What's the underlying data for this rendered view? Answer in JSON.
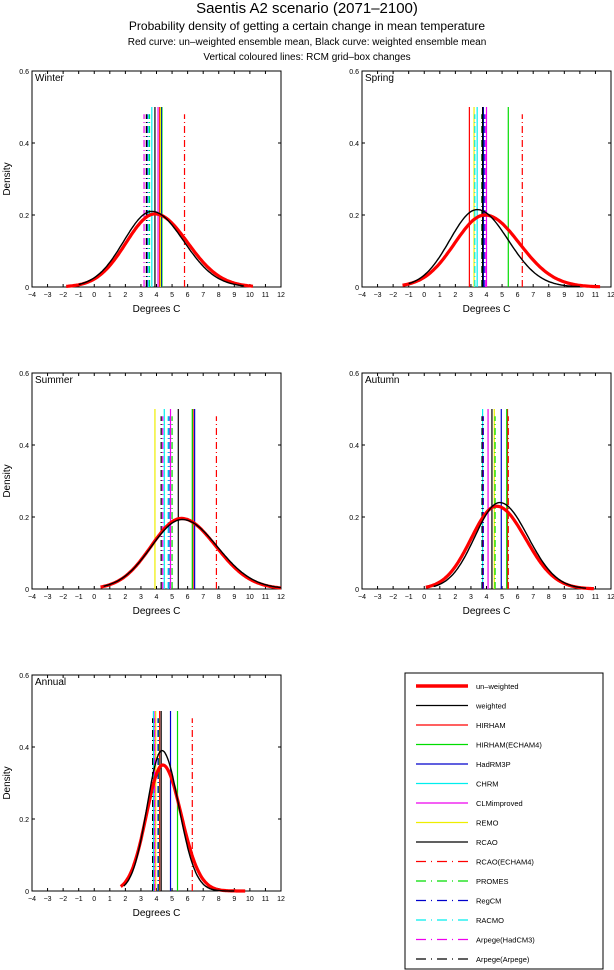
{
  "header": {
    "title": "Saentis A2 scenario (2071–2100)",
    "subtitle": "Probability density of getting a certain change in mean temperature",
    "line3": "Red curve: un–weighted ensemble mean, Black curve: weighted ensemble mean",
    "line4": "Vertical coloured lines: RCM grid–box changes"
  },
  "models": [
    {
      "key": "unweighted",
      "label": "un–weighted",
      "color": "#ff0000",
      "style": "thick"
    },
    {
      "key": "weighted",
      "label": "weighted",
      "color": "#000000",
      "style": "solid"
    },
    {
      "key": "HIRHAM",
      "label": "HIRHAM",
      "color": "#ff0000",
      "style": "solid"
    },
    {
      "key": "HIRHAM_ECHAM4",
      "label": "HIRHAM(ECHAM4)",
      "color": "#00dd00",
      "style": "solid"
    },
    {
      "key": "HadRM3P",
      "label": "HadRM3P",
      "color": "#0000cc",
      "style": "solid"
    },
    {
      "key": "CHRM",
      "label": "CHRM",
      "color": "#00eeee",
      "style": "solid"
    },
    {
      "key": "CLMimproved",
      "label": "CLMimproved",
      "color": "#ee00ee",
      "style": "solid"
    },
    {
      "key": "REMO",
      "label": "REMO",
      "color": "#eeee00",
      "style": "solid"
    },
    {
      "key": "RCAO",
      "label": "RCAO",
      "color": "#000000",
      "style": "solid"
    },
    {
      "key": "RCAO_ECHAM4",
      "label": "RCAO(ECHAM4)",
      "color": "#ff0000",
      "style": "dashdot"
    },
    {
      "key": "PROMES",
      "label": "PROMES",
      "color": "#00dd00",
      "style": "dashdot"
    },
    {
      "key": "RegCM",
      "label": "RegCM",
      "color": "#0000cc",
      "style": "dashdot"
    },
    {
      "key": "RACMO",
      "label": "RACMO",
      "color": "#00eeee",
      "style": "dashdot"
    },
    {
      "key": "Arpege_HadCM3",
      "label": "Arpege(HadCM3)",
      "color": "#ee00ee",
      "style": "dashdot"
    },
    {
      "key": "Arpege_Arpege",
      "label": "Arpege(Arpege)",
      "color": "#000000",
      "style": "dashdot"
    }
  ],
  "chart_data": [
    {
      "type": "line",
      "title": "Winter",
      "xlabel": "Degrees C",
      "ylabel": "Density",
      "xlim": [
        -4,
        12
      ],
      "ylim": [
        0,
        0.6
      ],
      "xticks": [
        -4,
        -3,
        -2,
        -1,
        0,
        1,
        2,
        3,
        4,
        5,
        6,
        7,
        8,
        9,
        10,
        11,
        12
      ],
      "yticks": [
        0,
        0.2,
        0.4,
        0.6
      ],
      "ytick_labels": [
        "0",
        "0.2",
        "0.4",
        "0.6"
      ],
      "unweighted": {
        "mean": 3.9,
        "sd": 1.95,
        "peak": 0.203,
        "range": [
          -1.8,
          10.2
        ]
      },
      "weighted": {
        "mean": 3.7,
        "sd": 1.9,
        "peak": 0.21,
        "range": [
          -1.0,
          9.6
        ]
      },
      "rcm_lines": {
        "HIRHAM": 4.2,
        "HIRHAM_ECHAM4": 4.35,
        "HadRM3P": 4.3,
        "CHRM": 3.7,
        "CLMimproved": 4.1,
        "REMO": 4.25,
        "RCAO": 3.9,
        "RCAO_ECHAM4": 5.8,
        "PROMES": 3.55,
        "RegCM": 3.4,
        "RACMO": 3.5,
        "Arpege_HadCM3": 3.2,
        "Arpege_Arpege": 3.35
      }
    },
    {
      "type": "line",
      "title": "Spring",
      "xlabel": "Degrees C",
      "ylabel": "",
      "xlim": [
        -4,
        12
      ],
      "ylim": [
        0,
        0.6
      ],
      "xticks": [
        -4,
        -3,
        -2,
        -1,
        0,
        1,
        2,
        3,
        4,
        5,
        6,
        7,
        8,
        9,
        10,
        11,
        12
      ],
      "yticks": [
        0,
        0.2,
        0.4,
        0.6
      ],
      "ytick_labels": [
        "0",
        "0.2",
        "0.4",
        "0.6"
      ],
      "unweighted": {
        "mean": 3.9,
        "sd": 2.05,
        "peak": 0.2,
        "range": [
          -1.4,
          11.3
        ]
      },
      "weighted": {
        "mean": 3.4,
        "sd": 1.85,
        "peak": 0.215,
        "range": [
          -1.0,
          10.0
        ]
      },
      "rcm_lines": {
        "HIRHAM": 2.9,
        "HIRHAM_ECHAM4": 5.4,
        "HadRM3P": 3.8,
        "CHRM": 3.4,
        "CLMimproved": 4.0,
        "REMO": 3.2,
        "RCAO": 3.75,
        "RCAO_ECHAM4": 6.3,
        "PROMES": 3.7,
        "RegCM": 3.85,
        "RACMO": 3.25,
        "Arpege_HadCM3": 3.95,
        "Arpege_Arpege": 3.72
      }
    },
    {
      "type": "line",
      "title": "Summer",
      "xlabel": "Degrees C",
      "ylabel": "Density",
      "xlim": [
        -4,
        12
      ],
      "ylim": [
        0,
        0.6
      ],
      "xticks": [
        -4,
        -3,
        -2,
        -1,
        0,
        1,
        2,
        3,
        4,
        5,
        6,
        7,
        8,
        9,
        10,
        11,
        12
      ],
      "yticks": [
        0,
        0.2,
        0.4,
        0.6
      ],
      "ytick_labels": [
        "0",
        "0.2",
        "0.4",
        "0.6"
      ],
      "unweighted": {
        "mean": 5.6,
        "sd": 2.05,
        "peak": 0.196,
        "range": [
          0.4,
          12.0
        ]
      },
      "weighted": {
        "mean": 5.65,
        "sd": 2.1,
        "peak": 0.193,
        "range": [
          0.6,
          12.0
        ]
      },
      "rcm_lines": {
        "HIRHAM": 6.35,
        "HIRHAM_ECHAM4": 6.3,
        "HadRM3P": 6.45,
        "CHRM": 4.5,
        "CLMimproved": 4.9,
        "REMO": 3.9,
        "RCAO": 5.4,
        "RCAO_ECHAM4": 7.85,
        "PROMES": 5.0,
        "RegCM": 4.8,
        "RACMO": 4.75,
        "Arpege_HadCM3": 4.4,
        "Arpege_Arpege": 4.3
      }
    },
    {
      "type": "line",
      "title": "Autumn",
      "xlabel": "Degrees C",
      "ylabel": "",
      "xlim": [
        -4,
        12
      ],
      "ylim": [
        0,
        0.6
      ],
      "xticks": [
        -4,
        -3,
        -2,
        -1,
        0,
        1,
        2,
        3,
        4,
        5,
        6,
        7,
        8,
        9,
        10,
        11,
        12
      ],
      "yticks": [
        0,
        0.2,
        0.4,
        0.6
      ],
      "ytick_labels": [
        "0",
        "0.2",
        "0.4",
        "0.6"
      ],
      "unweighted": {
        "mean": 4.65,
        "sd": 1.73,
        "peak": 0.23,
        "range": [
          0.1,
          10.9
        ]
      },
      "weighted": {
        "mean": 4.85,
        "sd": 1.68,
        "peak": 0.24,
        "range": [
          0.6,
          10.4
        ]
      },
      "rcm_lines": {
        "HIRHAM": 5.35,
        "HIRHAM_ECHAM4": 5.3,
        "HadRM3P": 4.95,
        "CHRM": 3.75,
        "CLMimproved": 4.1,
        "REMO": 4.5,
        "RCAO": 4.35,
        "RCAO_ECHAM4": 5.4,
        "PROMES": 4.55,
        "RegCM": 3.8,
        "RACMO": 3.7,
        "Arpege_HadCM3": 3.75,
        "Arpege_Arpege": 3.72
      }
    },
    {
      "type": "line",
      "title": "Annual",
      "xlabel": "Degrees C",
      "ylabel": "Density",
      "xlim": [
        -4,
        12
      ],
      "ylim": [
        0,
        0.6
      ],
      "xticks": [
        -4,
        -3,
        -2,
        -1,
        0,
        1,
        2,
        3,
        4,
        5,
        6,
        7,
        8,
        9,
        10,
        11,
        12
      ],
      "yticks": [
        0,
        0.2,
        0.4,
        0.6
      ],
      "ytick_labels": [
        "0",
        "0.2",
        "0.4",
        "0.6"
      ],
      "unweighted": {
        "mean": 4.4,
        "sd": 1.1,
        "peak": 0.35,
        "range": [
          1.7,
          9.7
        ]
      },
      "weighted": {
        "mean": 4.35,
        "sd": 1.0,
        "peak": 0.39,
        "range": [
          1.9,
          9.0
        ]
      },
      "rcm_lines": {
        "HIRHAM": 4.2,
        "HIRHAM_ECHAM4": 5.35,
        "HadRM3P": 4.9,
        "CHRM": 3.8,
        "CLMimproved": 3.9,
        "REMO": 3.95,
        "RCAO": 4.3,
        "RCAO_ECHAM4": 6.3,
        "PROMES": 4.15,
        "RegCM": 4.1,
        "RACMO": 3.85,
        "Arpege_HadCM3": 3.88,
        "Arpege_Arpege": 3.75
      }
    }
  ]
}
